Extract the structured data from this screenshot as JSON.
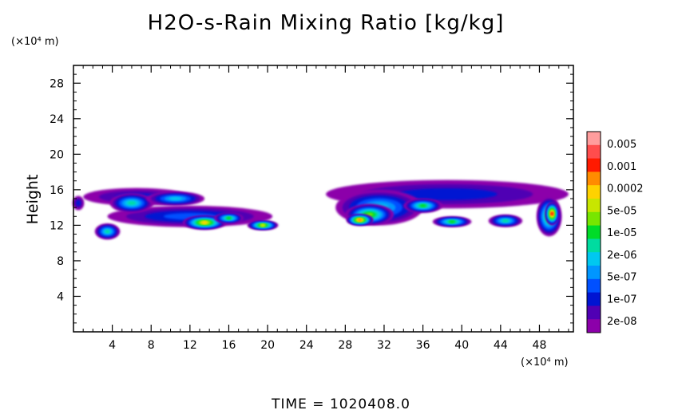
{
  "chart_data": {
    "type": "heatmap",
    "title": "H2O-s-Rain Mixing Ratio [kg/kg]",
    "ylabel": "Height",
    "xlabel": "",
    "y_unit": "(×10⁴ m)",
    "x_unit": "(×10⁴ m)",
    "xlim": [
      0,
      51.5
    ],
    "ylim": [
      0,
      30
    ],
    "x_ticks": [
      4,
      8,
      12,
      16,
      20,
      24,
      28,
      32,
      36,
      40,
      44,
      48
    ],
    "y_ticks": [
      4,
      8,
      12,
      16,
      20,
      24,
      28
    ],
    "colorbar": {
      "labels": [
        "0.005",
        "0.001",
        "0.0002",
        "5e-05",
        "1e-05",
        "2e-06",
        "5e-07",
        "1e-07",
        "2e-08"
      ],
      "colors": [
        "#ff9d9d",
        "#ff4d4d",
        "#ff1a00",
        "#ff8c00",
        "#ffd200",
        "#c8e600",
        "#78e600",
        "#00dc28",
        "#00dca0",
        "#00c8f0",
        "#0096ff",
        "#0050ff",
        "#0014d2",
        "#5000b4",
        "#8c00aa"
      ]
    },
    "blobs": [
      {
        "x": 0.5,
        "y": 14.5,
        "w": 1.2,
        "h": 1.6,
        "level": 2
      },
      {
        "x": 6.5,
        "y": 15.2,
        "w": 11,
        "h": 2.0,
        "level": 2
      },
      {
        "x": 12.0,
        "y": 13.0,
        "w": 17,
        "h": 2.4,
        "level": 3
      },
      {
        "x": 6.0,
        "y": 14.5,
        "w": 4.5,
        "h": 2.2,
        "level": 6
      },
      {
        "x": 10.5,
        "y": 15.0,
        "w": 6,
        "h": 1.6,
        "level": 5
      },
      {
        "x": 3.5,
        "y": 11.3,
        "w": 2.6,
        "h": 1.8,
        "level": 6
      },
      {
        "x": 13.5,
        "y": 12.3,
        "w": 4.5,
        "h": 1.6,
        "level": 10
      },
      {
        "x": 19.5,
        "y": 12.0,
        "w": 3.2,
        "h": 1.1,
        "level": 9
      },
      {
        "x": 16.0,
        "y": 12.8,
        "w": 3.0,
        "h": 1.2,
        "level": 7
      },
      {
        "x": 38.5,
        "y": 15.5,
        "w": 25,
        "h": 3.2,
        "level": 2
      },
      {
        "x": 31.5,
        "y": 14.0,
        "w": 9,
        "h": 4.0,
        "level": 5
      },
      {
        "x": 30.5,
        "y": 13.2,
        "w": 5,
        "h": 2.4,
        "level": 8
      },
      {
        "x": 29.5,
        "y": 12.6,
        "w": 2.8,
        "h": 1.3,
        "level": 11
      },
      {
        "x": 36.0,
        "y": 14.2,
        "w": 4,
        "h": 1.6,
        "level": 7
      },
      {
        "x": 39.0,
        "y": 12.4,
        "w": 4,
        "h": 1.2,
        "level": 7
      },
      {
        "x": 44.5,
        "y": 12.5,
        "w": 3.5,
        "h": 1.4,
        "level": 6
      },
      {
        "x": 49.0,
        "y": 13.0,
        "w": 2.6,
        "h": 4.5,
        "level": 8
      },
      {
        "x": 49.3,
        "y": 13.3,
        "w": 1.4,
        "h": 2.6,
        "level": 12
      }
    ]
  },
  "time_label": "TIME  =  1020408.0"
}
